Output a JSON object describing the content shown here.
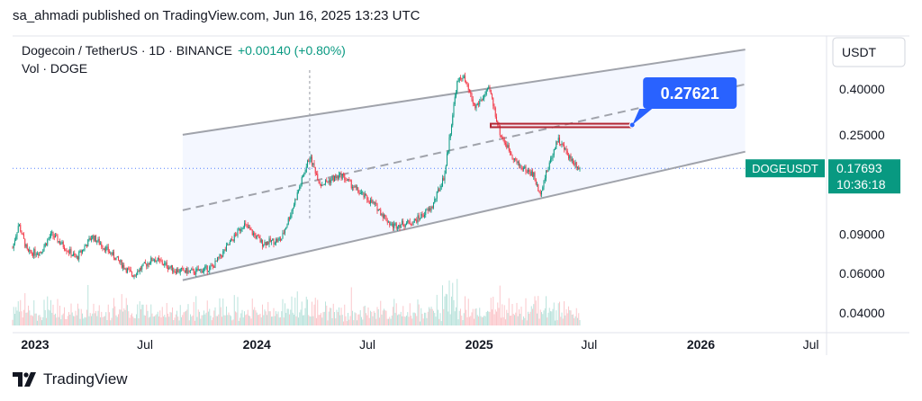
{
  "publisher_line": "sa_ahmadi published on TradingView.com, Jun 16, 2025 13:23 UTC",
  "brand": "TradingView",
  "legend": {
    "symbol": "Dogecoin / TetherUS · 1D · BINANCE",
    "change": "+0.00140 (+0.80%)",
    "volume_label": "Vol · DOGE"
  },
  "colors": {
    "up": "#089981",
    "down": "#f23645",
    "callout": "#2962ff",
    "channel": "#a0a3ab",
    "zone": "#b22833",
    "text": "#131722"
  },
  "chart_data": {
    "type": "candlestick",
    "symbol": "DOGEUSDT",
    "currency": "USDT",
    "scale": "log",
    "ylim": [
      0.035,
      0.55
    ],
    "x_ticks": [
      "2023",
      "Jul",
      "2024",
      "Jul",
      "2025",
      "Jul",
      "2026",
      "Jul"
    ],
    "y_ticks": [
      "0.40000",
      "0.25000",
      "0.09000",
      "0.06000",
      "0.04000"
    ],
    "last_price": {
      "label": "DOGEUSDT",
      "value": "0.17693",
      "countdown": "10:36:18"
    },
    "target": {
      "value": "0.27621",
      "date": "2025-09-10"
    },
    "price_path": [
      {
        "date": "2022-11-25",
        "close": 0.078
      },
      {
        "date": "2022-12-05",
        "close": 0.1
      },
      {
        "date": "2022-12-20",
        "close": 0.074
      },
      {
        "date": "2023-01-10",
        "close": 0.075
      },
      {
        "date": "2023-01-28",
        "close": 0.09
      },
      {
        "date": "2023-03-10",
        "close": 0.07
      },
      {
        "date": "2023-04-05",
        "close": 0.088
      },
      {
        "date": "2023-05-10",
        "close": 0.072
      },
      {
        "date": "2023-06-10",
        "close": 0.059
      },
      {
        "date": "2023-07-15",
        "close": 0.07
      },
      {
        "date": "2023-08-20",
        "close": 0.062
      },
      {
        "date": "2023-09-20",
        "close": 0.061
      },
      {
        "date": "2023-10-20",
        "close": 0.064
      },
      {
        "date": "2023-11-15",
        "close": 0.08
      },
      {
        "date": "2023-12-10",
        "close": 0.1
      },
      {
        "date": "2024-01-10",
        "close": 0.082
      },
      {
        "date": "2024-02-10",
        "close": 0.085
      },
      {
        "date": "2024-03-01",
        "close": 0.12
      },
      {
        "date": "2024-03-28",
        "close": 0.2
      },
      {
        "date": "2024-04-15",
        "close": 0.15
      },
      {
        "date": "2024-05-20",
        "close": 0.165
      },
      {
        "date": "2024-06-15",
        "close": 0.14
      },
      {
        "date": "2024-07-15",
        "close": 0.12
      },
      {
        "date": "2024-08-10",
        "close": 0.098
      },
      {
        "date": "2024-09-15",
        "close": 0.102
      },
      {
        "date": "2024-10-15",
        "close": 0.118
      },
      {
        "date": "2024-11-05",
        "close": 0.165
      },
      {
        "date": "2024-11-25",
        "close": 0.42
      },
      {
        "date": "2024-12-05",
        "close": 0.46
      },
      {
        "date": "2024-12-25",
        "close": 0.33
      },
      {
        "date": "2025-01-18",
        "close": 0.4
      },
      {
        "date": "2025-02-05",
        "close": 0.25
      },
      {
        "date": "2025-03-05",
        "close": 0.185
      },
      {
        "date": "2025-04-01",
        "close": 0.165
      },
      {
        "date": "2025-04-10",
        "close": 0.135
      },
      {
        "date": "2025-05-10",
        "close": 0.24
      },
      {
        "date": "2025-06-01",
        "close": 0.195
      },
      {
        "date": "2025-06-16",
        "close": 0.177
      }
    ],
    "channel": {
      "upper": [
        {
          "date": "2023-09-01",
          "value": 0.25
        },
        {
          "date": "2026-03-15",
          "value": 0.6
        }
      ],
      "median": [
        {
          "date": "2023-09-01",
          "value": 0.115
        },
        {
          "date": "2026-03-15",
          "value": 0.42
        }
      ],
      "lower": [
        {
          "date": "2023-09-01",
          "value": 0.056
        },
        {
          "date": "2026-03-15",
          "value": 0.21
        }
      ]
    },
    "resistance_zone": {
      "from": "2025-01-20",
      "to": "2025-09-10",
      "top": 0.28,
      "bottom": 0.27
    }
  }
}
